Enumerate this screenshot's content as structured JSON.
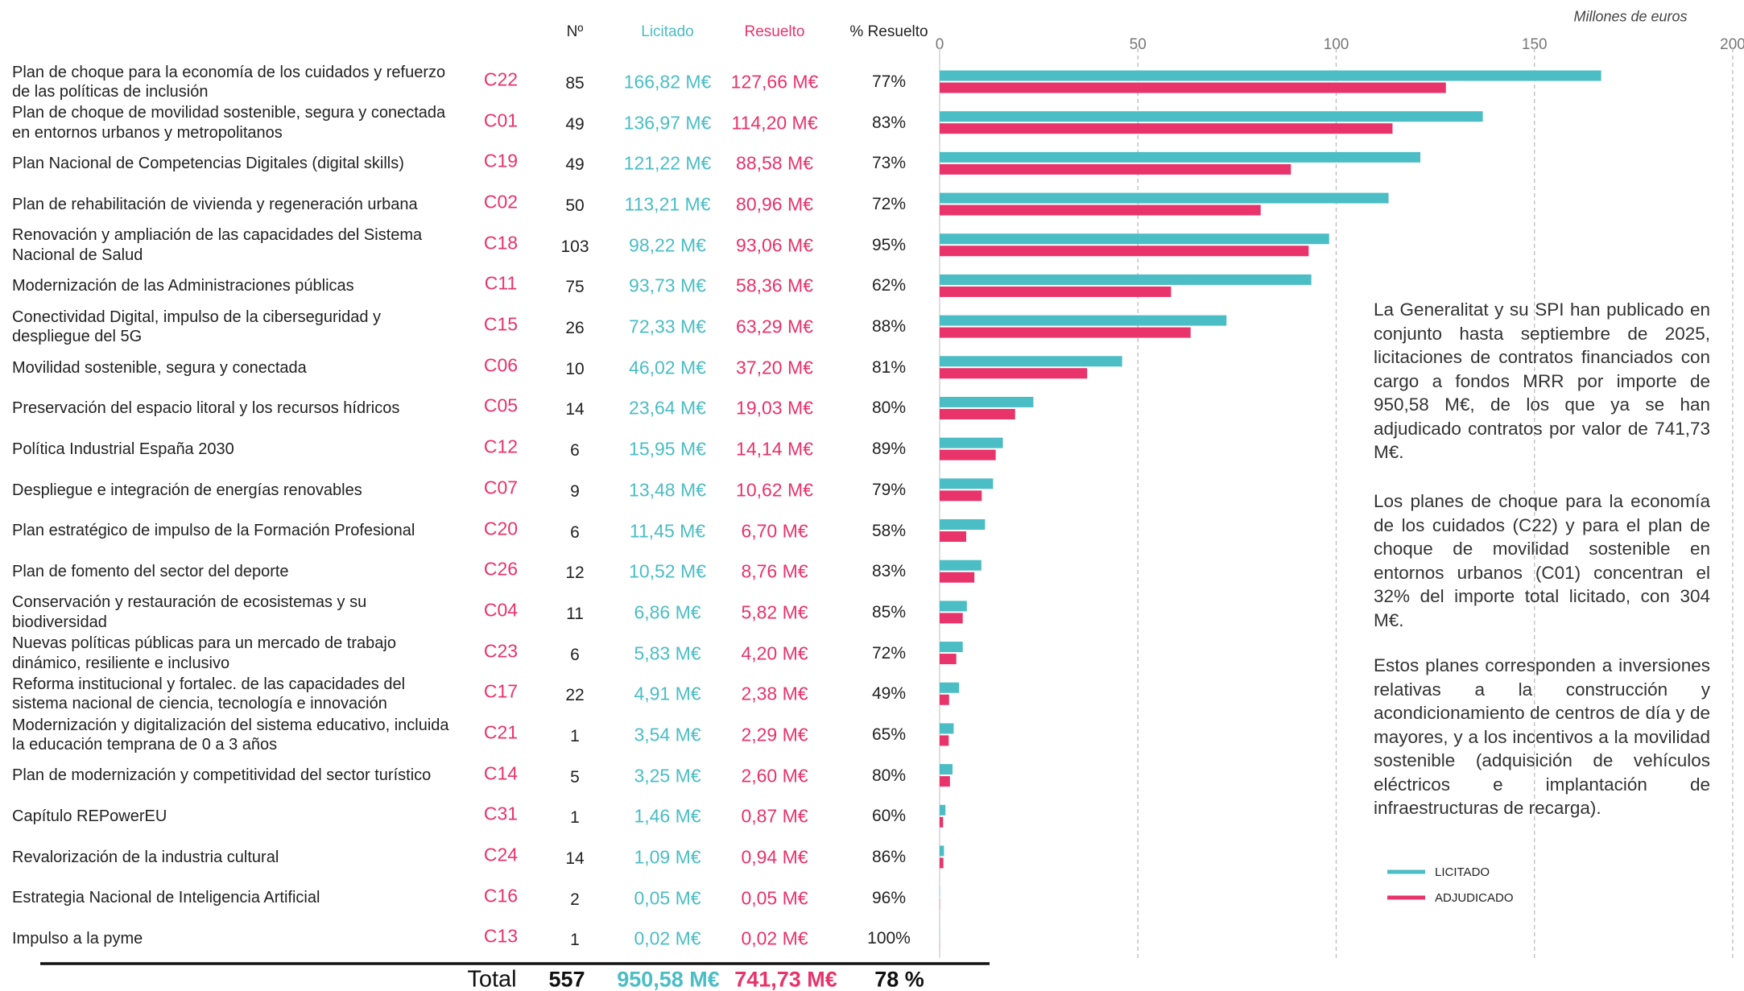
{
  "chart_data": {
    "type": "bar",
    "orientation": "horizontal",
    "x_label": "Millones de euros",
    "columns": [
      "Nº",
      "Licitado",
      "Resuelto",
      "% Resuelto"
    ],
    "categories": [
      "Plan de choque para la economía de los cuidados y refuerzo de las políticas de inclusión",
      "Plan de choque de movilidad sostenible, segura y conectada en entornos urbanos y metropolitanos",
      "Plan Nacional de Competencias Digitales (digital skills)",
      "Plan de rehabilitación de vivienda y regeneración urbana",
      "Renovación y ampliación de las capacidades del Sistema Nacional de Salud",
      "Modernización de las Administraciones públicas",
      "Conectividad Digital, impulso de la ciberseguridad y despliegue del 5G",
      "Movilidad sostenible, segura y conectada",
      "Preservación del espacio litoral y los recursos hídricos",
      "Política Industrial España 2030",
      "Despliegue e integración de energías renovables",
      "Plan estratégico de impulso de la Formación Profesional",
      "Plan de fomento del sector del deporte",
      "Conservación y restauración de ecosistemas y su biodiversidad",
      "Nuevas políticas públicas para un mercado de trabajo dinámico, resiliente e inclusivo",
      "Reforma institucional y fortalec. de las capacidades del sistema nacional de ciencia, tecnología e innovación",
      "Modernización y digitalización del sistema educativo, incluida la educación temprana de 0 a 3 años",
      "Plan de modernización y competitividad del sector turístico",
      "Capítulo REPowerEU",
      "Revalorización de la industria cultural",
      "Estrategia Nacional de Inteligencia Artificial",
      "Impulso a la pyme"
    ],
    "codes": [
      "C22",
      "C01",
      "C19",
      "C02",
      "C18",
      "C11",
      "C15",
      "C06",
      "C05",
      "C12",
      "C07",
      "C20",
      "C26",
      "C04",
      "C23",
      "C17",
      "C21",
      "C14",
      "C31",
      "C24",
      "C16",
      "C13"
    ],
    "counts": [
      85,
      49,
      49,
      50,
      103,
      75,
      26,
      10,
      14,
      6,
      9,
      6,
      12,
      11,
      6,
      22,
      1,
      5,
      1,
      14,
      2,
      1
    ],
    "series": [
      {
        "name": "LICITADO",
        "color": "#4bbdc4",
        "values": [
          166.82,
          136.97,
          121.22,
          113.21,
          98.22,
          93.73,
          72.33,
          46.02,
          23.64,
          15.95,
          13.48,
          11.45,
          10.52,
          6.86,
          5.83,
          4.91,
          3.54,
          3.25,
          1.46,
          1.09,
          0.05,
          0.02
        ],
        "value_labels": [
          "166,82 M€",
          "136,97 M€",
          "121,22 M€",
          "113,21 M€",
          "98,22 M€",
          "93,73 M€",
          "72,33 M€",
          "46,02 M€",
          "23,64 M€",
          "15,95 M€",
          "13,48 M€",
          "11,45 M€",
          "10,52 M€",
          "6,86 M€",
          "5,83 M€",
          "4,91 M€",
          "3,54 M€",
          "3,25 M€",
          "1,46 M€",
          "1,09 M€",
          "0,05 M€",
          "0,02 M€"
        ]
      },
      {
        "name": "ADJUDICADO",
        "color": "#e8336b",
        "values": [
          127.66,
          114.2,
          88.58,
          80.96,
          93.06,
          58.36,
          63.29,
          37.2,
          19.03,
          14.14,
          10.62,
          6.7,
          8.76,
          5.82,
          4.2,
          2.38,
          2.29,
          2.6,
          0.87,
          0.94,
          0.05,
          0.02
        ],
        "value_labels": [
          "127,66 M€",
          "114,20 M€",
          "88,58 M€",
          "80,96 M€",
          "93,06 M€",
          "58,36 M€",
          "63,29 M€",
          "37,20 M€",
          "19,03 M€",
          "14,14 M€",
          "10,62 M€",
          "6,70 M€",
          "8,76 M€",
          "5,82 M€",
          "4,20 M€",
          "2,38 M€",
          "2,29 M€",
          "2,60 M€",
          "0,87 M€",
          "0,94 M€",
          "0,05 M€",
          "0,02 M€"
        ]
      }
    ],
    "percent": {
      "values": [
        77,
        83,
        73,
        72,
        95,
        62,
        88,
        81,
        80,
        89,
        79,
        58,
        83,
        85,
        72,
        49,
        65,
        80,
        60,
        86,
        96,
        100
      ],
      "value_labels": [
        "77%",
        "83%",
        "73%",
        "72%",
        "95%",
        "62%",
        "88%",
        "81%",
        "80%",
        "89%",
        "79%",
        "58%",
        "83%",
        "85%",
        "72%",
        "49%",
        "65%",
        "80%",
        "60%",
        "86%",
        "96%",
        "100%"
      ]
    },
    "total": {
      "label": "Total",
      "count": 557,
      "licitado": 950.58,
      "licitado_label": "950,58 M€",
      "resuelto": 741.73,
      "resuelto_label": "741,73 M€",
      "percent": 78,
      "percent_label": "78 %"
    },
    "xlim": [
      0,
      200
    ],
    "xticks": [
      0,
      50,
      100,
      150,
      200
    ],
    "grid": true,
    "notes": [
      "La Generalitat y su SPI han publicado en conjunto hasta septiembre de 2025, licitaciones de contratos financiados con cargo a fondos MRR por importe de 950,58 M€, de los que ya se han adjudicado contratos por valor de 741,73 M€.",
      "Los planes de choque para la economía de los cuidados (C22) y para el plan de choque de movilidad sostenible en entornos urbanos (C01) concentran el 32% del importe total licitado, con 304 M€.",
      "Estos planes corresponden a inversiones relativas a la construcción y acondicionamiento de centros de día y de mayores, y a los incentivos a la movilidad sostenible (adquisición de vehículos eléctricos e implantación de infraestructuras de recarga)."
    ]
  }
}
